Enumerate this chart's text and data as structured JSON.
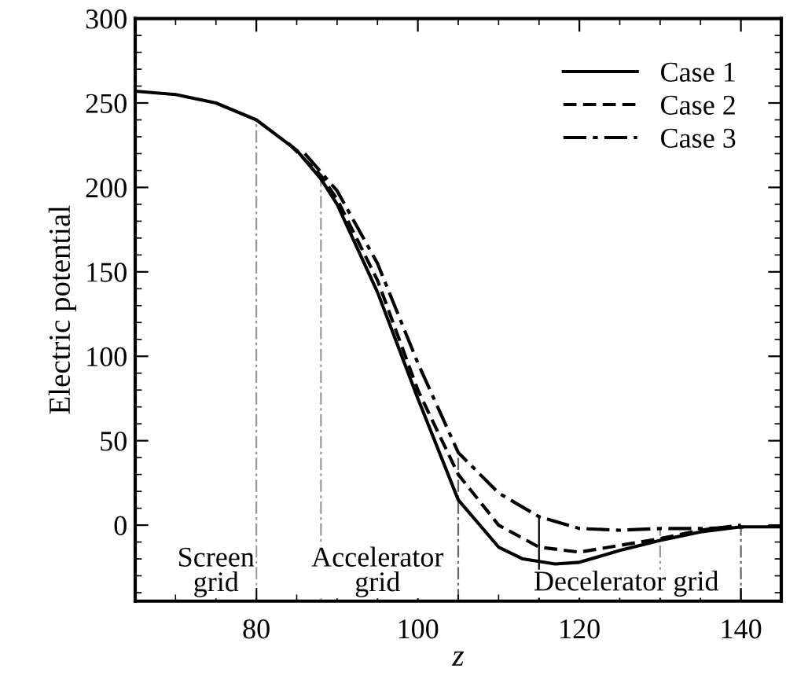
{
  "chart_data": {
    "type": "line",
    "xlabel": "z",
    "ylabel": "Electric potential",
    "xlim": [
      65,
      145
    ],
    "xticks": [
      80,
      100,
      120,
      140
    ],
    "ylim": [
      -45,
      300
    ],
    "yticks": [
      0,
      50,
      100,
      150,
      200,
      250,
      300
    ],
    "grid": false,
    "legend": "top right",
    "marker": "none",
    "series": [
      {
        "name": "Case 1",
        "color": "#000000",
        "line_style": "solid",
        "x": [
          65,
          70,
          75,
          80,
          85,
          88,
          90,
          95,
          100,
          105,
          110,
          113,
          117,
          120,
          125,
          130,
          135,
          140,
          145
        ],
        "values": [
          257,
          255,
          250,
          240,
          222,
          205,
          190,
          138,
          75,
          15,
          -13,
          -20,
          -23,
          -22,
          -15,
          -9,
          -4,
          -1,
          -1
        ]
      },
      {
        "name": "Case 2",
        "color": "#000000",
        "line_style": "dashed",
        "x": [
          84,
          88,
          90,
          95,
          100,
          105,
          110,
          115,
          120,
          125,
          130,
          135,
          140
        ],
        "values": [
          226,
          207,
          193,
          145,
          80,
          30,
          0,
          -13,
          -16,
          -12,
          -8,
          -3,
          0
        ]
      },
      {
        "name": "Case 3",
        "color": "#000000",
        "line_style": "dashdot",
        "x": [
          86,
          88,
          90,
          95,
          100,
          105,
          110,
          115,
          120,
          125,
          130,
          135,
          141
        ],
        "values": [
          220,
          209,
          198,
          155,
          96,
          43,
          19,
          5,
          -2,
          -3,
          -2,
          -2,
          -1
        ]
      }
    ],
    "ref_lines": [
      {
        "axis": "x",
        "value": 80,
        "color": "#999999",
        "line_style": "dashdot"
      },
      {
        "axis": "x",
        "value": 88,
        "color": "#999999",
        "line_style": "dashdot"
      },
      {
        "axis": "x",
        "value": 105,
        "color": "#666666",
        "line_style": "dashdot"
      },
      {
        "axis": "x",
        "value": 115,
        "color": "#000000",
        "line_style": "solid"
      },
      {
        "axis": "x",
        "value": 130,
        "color": "#999999",
        "line_style": "dashdot"
      },
      {
        "axis": "x",
        "value": 140,
        "color": "#666666",
        "line_style": "dashdot"
      }
    ],
    "annotations": [
      "Screen\ngrid",
      "Accelerator\ngrid",
      "Decelerator grid"
    ]
  }
}
